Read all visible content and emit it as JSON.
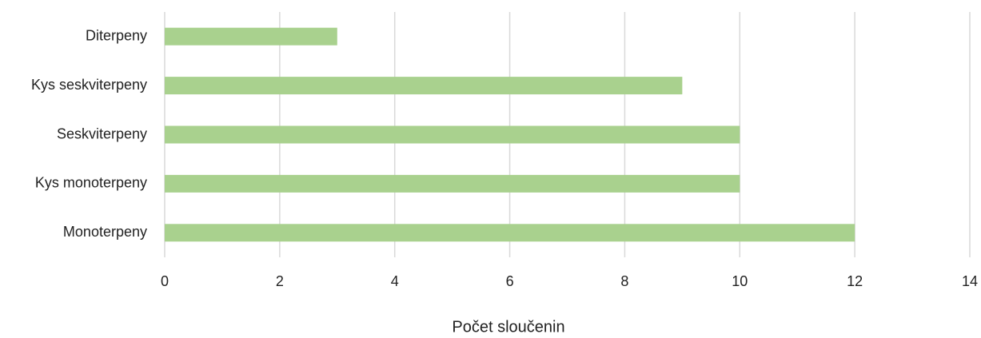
{
  "chart_data": {
    "type": "hbar",
    "categories": [
      "Diterpeny",
      "Kys seskviterpeny",
      "Seskviterpeny",
      "Kys monoterpeny",
      "Monoterpeny"
    ],
    "values": [
      3,
      9,
      10,
      10,
      12
    ],
    "color": "#a9d18e",
    "xlabel": "Počet sloučenin",
    "xlim": [
      0,
      14
    ],
    "xticks": [
      0,
      2,
      4,
      6,
      8,
      10,
      12,
      14
    ],
    "grid": true
  }
}
